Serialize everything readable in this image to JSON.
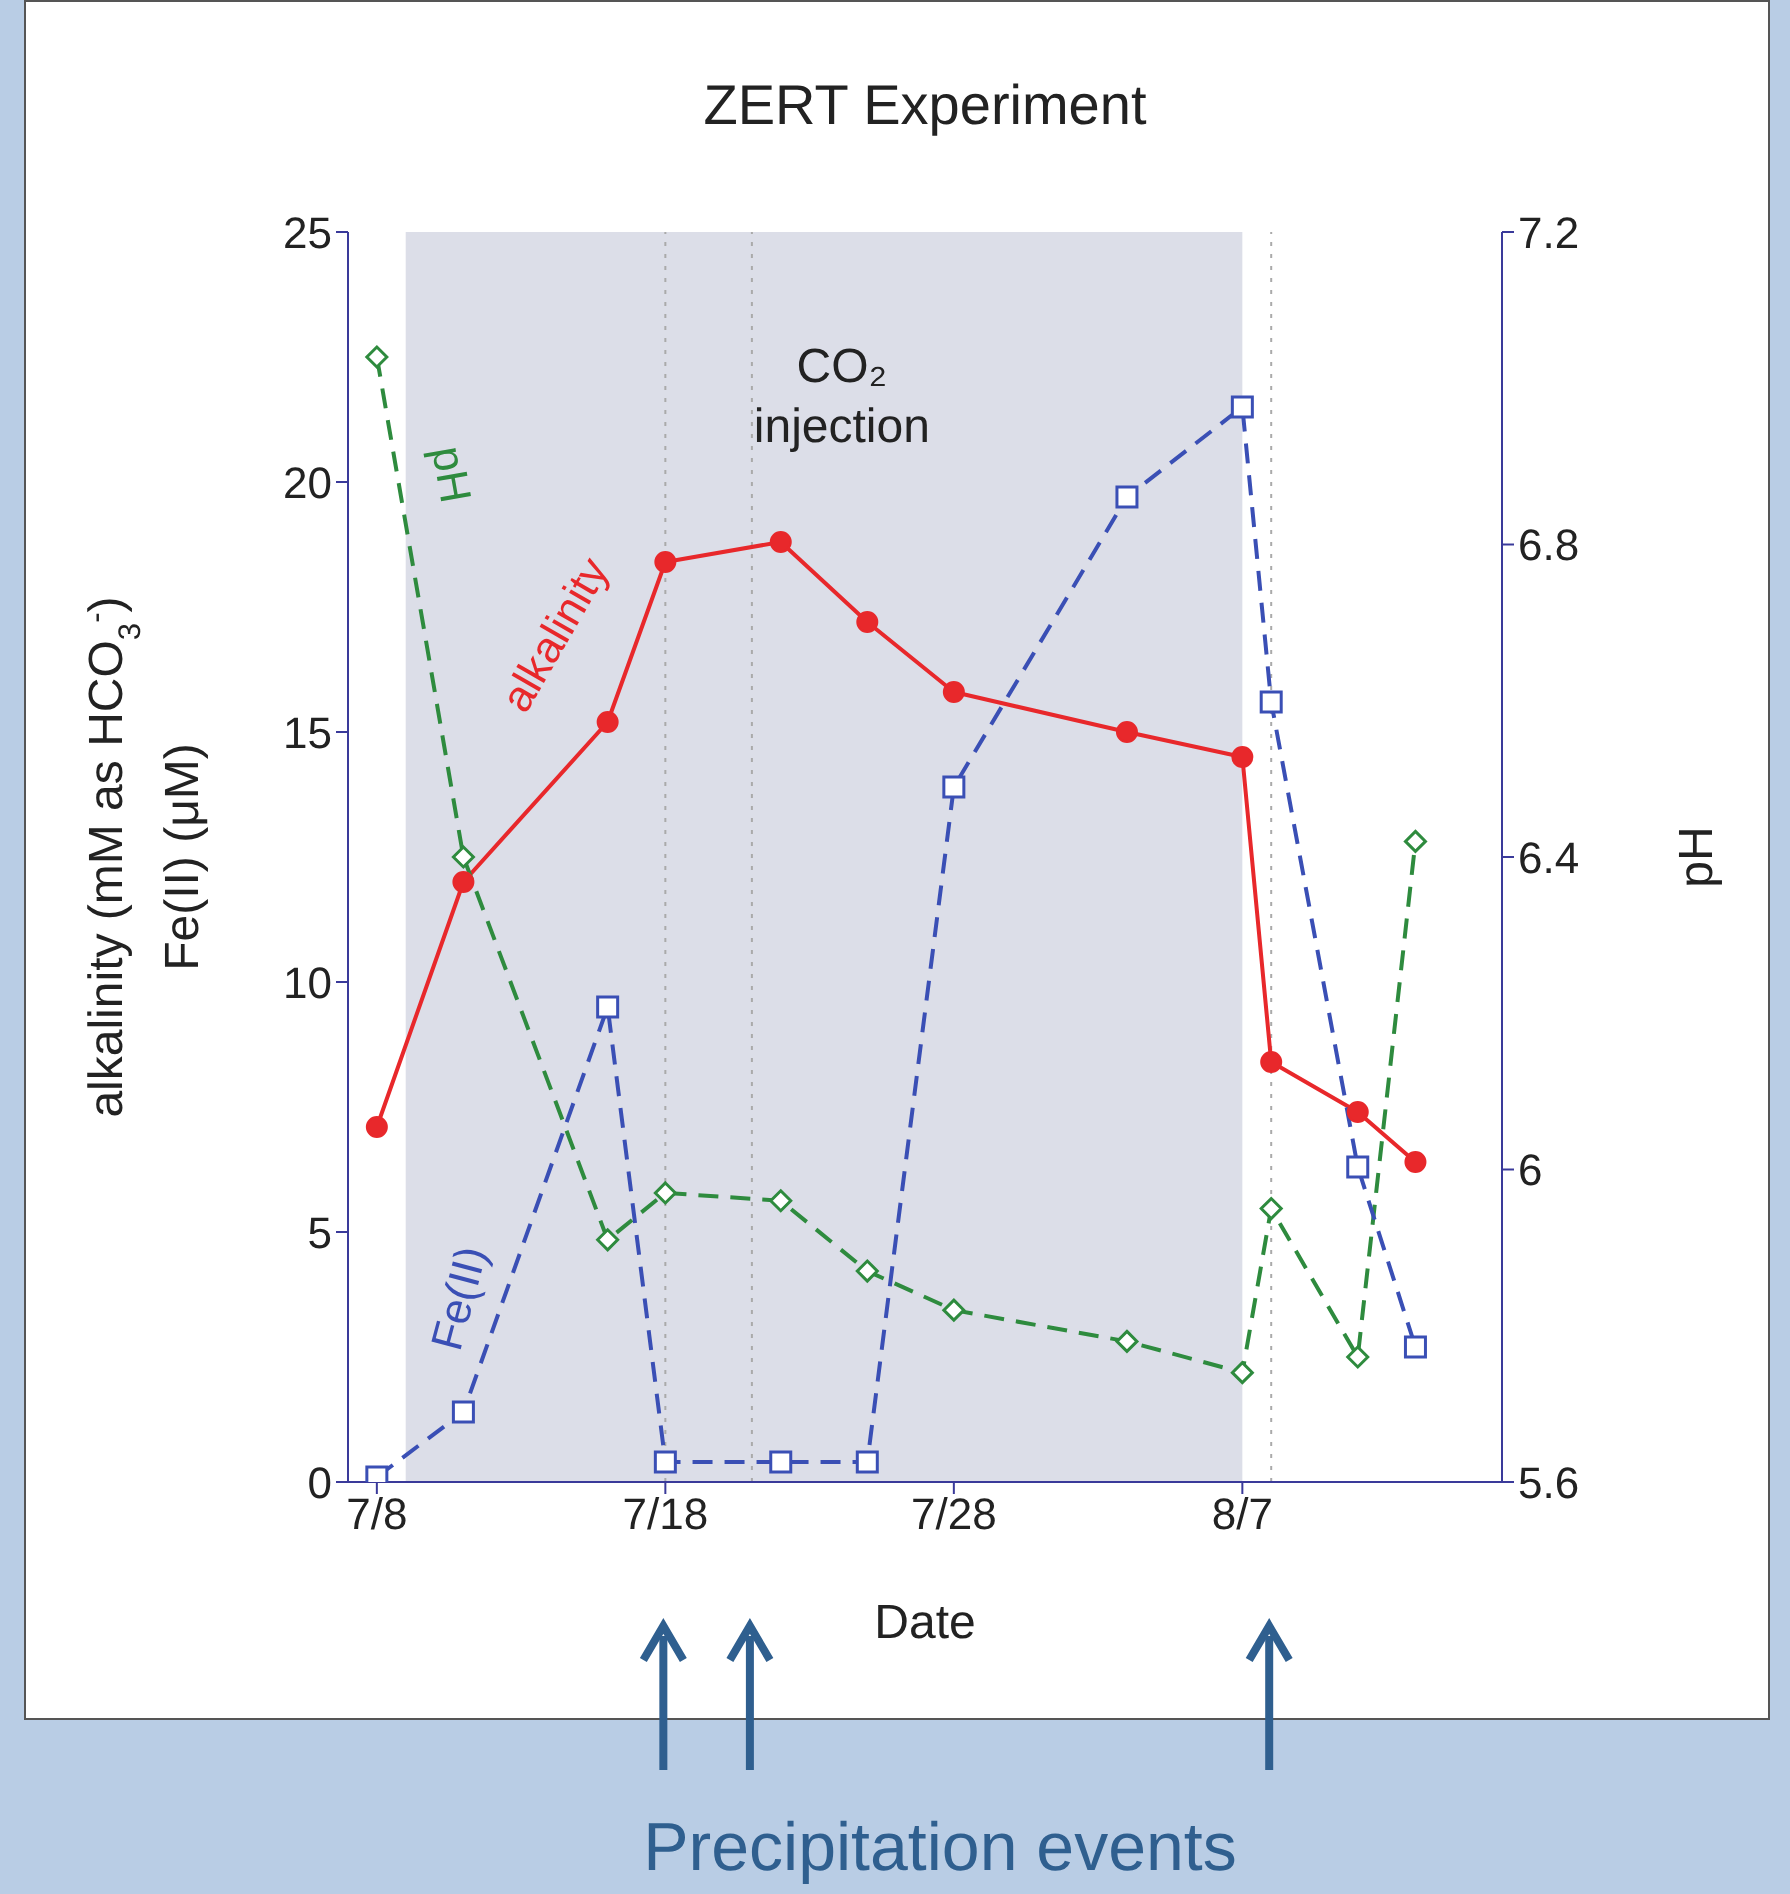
{
  "chart_data": {
    "type": "line",
    "title": "ZERT Experiment",
    "xlabel": "Date",
    "ylabel": "alkalinity (mM as HCO$_{3}$$^{-}$)\nFe(II) (μM)",
    "y2label": "pH",
    "xlim": [
      "--07-07",
      "--08-16"
    ],
    "xticks": [
      {
        "value": "--07-08",
        "label": "7/8"
      },
      {
        "value": "--07-18",
        "label": "7/18"
      },
      {
        "value": "--07-28",
        "label": "7/28"
      },
      {
        "value": "--08-07",
        "label": "8/7"
      }
    ],
    "ylim": [
      0,
      25
    ],
    "yticks": [
      0,
      5,
      10,
      15,
      20,
      25
    ],
    "y2lim": [
      5.6,
      7.2
    ],
    "y2ticks": [
      5.6,
      6,
      6.4,
      6.8,
      7.2
    ],
    "series": [
      {
        "name": "alkalinity",
        "color": "#e8282b",
        "marker": "circle",
        "line_style": "solid",
        "x": [
          "--07-08",
          "--07-11",
          "--07-16",
          "--07-18",
          "--07-22",
          "--07-25",
          "--07-28",
          "--08-03",
          "--08-07",
          "--08-08",
          "--08-11",
          "--08-13"
        ],
        "values": [
          7.1,
          12.0,
          15.2,
          18.4,
          18.8,
          17.2,
          15.8,
          15.0,
          14.5,
          8.4,
          7.4,
          6.4
        ]
      },
      {
        "name": "pH",
        "color": "#2e8b3e",
        "marker": "diamond",
        "line_style": "dashed",
        "axis": "y2",
        "x": [
          "--07-08",
          "--07-11",
          "--07-16",
          "--07-18",
          "--07-22",
          "--07-25",
          "--07-28",
          "--08-03",
          "--08-07",
          "--08-08",
          "--08-11",
          "--08-13"
        ],
        "values": [
          7.04,
          6.4,
          5.91,
          5.97,
          5.96,
          5.87,
          5.82,
          5.78,
          5.74,
          5.95,
          5.76,
          6.42
        ]
      },
      {
        "name": "Fe(II)",
        "color": "#3a4fb5",
        "marker": "square",
        "line_style": "dashed",
        "x": [
          "--07-08",
          "--07-11",
          "--07-16",
          "--07-18",
          "--07-22",
          "--07-25",
          "--07-28",
          "--08-03",
          "--08-07",
          "--08-08",
          "--08-11",
          "--08-13"
        ],
        "values": [
          0.1,
          1.4,
          9.5,
          0.4,
          0.4,
          0.4,
          13.9,
          19.7,
          21.5,
          15.6,
          6.3,
          2.7
        ]
      }
    ],
    "bands": [
      {
        "axis": "x",
        "from": "--07-09",
        "to": "--08-07",
        "label": "CO₂ injection",
        "color": "#dcdee8"
      }
    ],
    "ref_lines": [
      {
        "axis": "x",
        "value": "--07-18",
        "line_style": "dotted",
        "color": "#aaaaaa"
      },
      {
        "axis": "x",
        "value": "--07-21",
        "line_style": "dotted",
        "color": "#aaaaaa"
      },
      {
        "axis": "x",
        "value": "--08-08",
        "line_style": "dotted",
        "color": "#aaaaaa"
      }
    ],
    "annotations": [
      "Precipitation events"
    ]
  }
}
